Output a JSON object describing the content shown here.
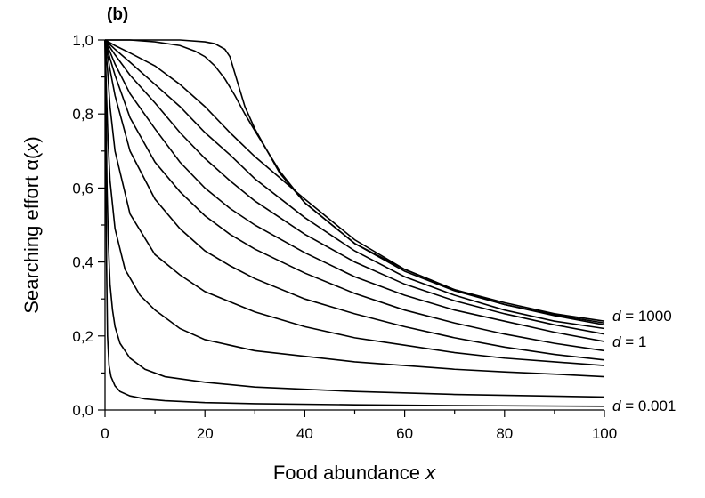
{
  "chart_data": {
    "type": "line",
    "panel_label": "(b)",
    "xlabel": "Food abundance",
    "xlabel_var": "x",
    "ylabel": "Searching effort α(",
    "ylabel_var": "x",
    "ylabel_close": ")",
    "xlim": [
      0,
      100
    ],
    "ylim": [
      0.0,
      1.0
    ],
    "x_ticks": [
      0,
      20,
      40,
      60,
      80,
      100
    ],
    "x_tick_labels": [
      "0",
      "20",
      "40",
      "60",
      "80",
      "100"
    ],
    "y_ticks": [
      0.0,
      0.2,
      0.4,
      0.6,
      0.8,
      1.0
    ],
    "y_tick_labels": [
      "0,0",
      "0,2",
      "0,4",
      "0,6",
      "0,8",
      "1,0"
    ],
    "annotations": [
      {
        "var": "d",
        "text": " = 1000",
        "y": 0.255
      },
      {
        "var": "d",
        "text": " = 1",
        "y": 0.185
      },
      {
        "var": "d",
        "text": " = 0.001",
        "y": 0.012
      }
    ],
    "series": [
      {
        "x": [
          0,
          5,
          10,
          15,
          20,
          22,
          24,
          25,
          26,
          28,
          30,
          35,
          40,
          50,
          60,
          70,
          80,
          90,
          100
        ],
        "y": [
          1.0,
          1.0,
          1.0,
          1.0,
          0.995,
          0.99,
          0.975,
          0.955,
          0.91,
          0.82,
          0.76,
          0.64,
          0.56,
          0.45,
          0.38,
          0.325,
          0.29,
          0.26,
          0.24
        ]
      },
      {
        "x": [
          0,
          5,
          10,
          15,
          18,
          20,
          22,
          24,
          26,
          28,
          30,
          35,
          40,
          50,
          60,
          70,
          80,
          90,
          100
        ],
        "y": [
          1.0,
          1.0,
          0.995,
          0.985,
          0.97,
          0.955,
          0.93,
          0.895,
          0.85,
          0.8,
          0.755,
          0.645,
          0.56,
          0.45,
          0.375,
          0.322,
          0.285,
          0.257,
          0.235
        ]
      },
      {
        "x": [
          0,
          2,
          5,
          10,
          15,
          20,
          25,
          30,
          40,
          50,
          60,
          70,
          80,
          90,
          100
        ],
        "y": [
          1.0,
          0.985,
          0.965,
          0.93,
          0.88,
          0.82,
          0.75,
          0.685,
          0.57,
          0.46,
          0.38,
          0.325,
          0.285,
          0.255,
          0.23
        ]
      },
      {
        "x": [
          0,
          2,
          5,
          10,
          15,
          20,
          25,
          30,
          40,
          50,
          60,
          70,
          80,
          90,
          100
        ],
        "y": [
          1.0,
          0.975,
          0.94,
          0.88,
          0.82,
          0.75,
          0.69,
          0.625,
          0.52,
          0.43,
          0.36,
          0.31,
          0.27,
          0.24,
          0.22
        ]
      },
      {
        "x": [
          0,
          2,
          5,
          10,
          15,
          20,
          25,
          30,
          40,
          50,
          60,
          70,
          80,
          90,
          100
        ],
        "y": [
          1.0,
          0.96,
          0.905,
          0.83,
          0.75,
          0.68,
          0.62,
          0.565,
          0.475,
          0.4,
          0.34,
          0.295,
          0.26,
          0.23,
          0.205
        ]
      },
      {
        "x": [
          0,
          2,
          5,
          10,
          15,
          20,
          25,
          30,
          40,
          50,
          60,
          70,
          80,
          90,
          100
        ],
        "y": [
          1.0,
          0.935,
          0.855,
          0.76,
          0.67,
          0.6,
          0.545,
          0.5,
          0.425,
          0.36,
          0.31,
          0.27,
          0.24,
          0.21,
          0.185
        ]
      },
      {
        "x": [
          0,
          1,
          2,
          5,
          10,
          15,
          20,
          25,
          30,
          40,
          50,
          60,
          70,
          80,
          90,
          100
        ],
        "y": [
          1.0,
          0.95,
          0.905,
          0.79,
          0.67,
          0.59,
          0.525,
          0.475,
          0.435,
          0.37,
          0.315,
          0.27,
          0.235,
          0.205,
          0.18,
          0.16
        ]
      },
      {
        "x": [
          0,
          1,
          2,
          5,
          10,
          15,
          20,
          25,
          30,
          40,
          50,
          60,
          70,
          80,
          90,
          100
        ],
        "y": [
          1.0,
          0.92,
          0.85,
          0.7,
          0.57,
          0.49,
          0.43,
          0.39,
          0.355,
          0.3,
          0.26,
          0.225,
          0.195,
          0.17,
          0.15,
          0.135
        ]
      },
      {
        "x": [
          0,
          0.5,
          1,
          2,
          5,
          10,
          15,
          20,
          30,
          40,
          50,
          60,
          70,
          80,
          90,
          100
        ],
        "y": [
          1.0,
          0.92,
          0.82,
          0.7,
          0.53,
          0.42,
          0.365,
          0.32,
          0.265,
          0.225,
          0.195,
          0.175,
          0.155,
          0.14,
          0.13,
          0.12
        ]
      },
      {
        "x": [
          0,
          0.3,
          0.6,
          1,
          2,
          4,
          7,
          10,
          15,
          20,
          30,
          40,
          50,
          60,
          70,
          80,
          90,
          100
        ],
        "y": [
          1.0,
          0.85,
          0.73,
          0.62,
          0.49,
          0.38,
          0.31,
          0.27,
          0.22,
          0.19,
          0.16,
          0.145,
          0.13,
          0.12,
          0.11,
          0.103,
          0.097,
          0.09
        ]
      },
      {
        "x": [
          0,
          0.2,
          0.4,
          0.7,
          1,
          1.5,
          2,
          3,
          5,
          8,
          12,
          20,
          30,
          50,
          70,
          100
        ],
        "y": [
          1.0,
          0.8,
          0.6,
          0.44,
          0.34,
          0.27,
          0.225,
          0.18,
          0.14,
          0.11,
          0.09,
          0.075,
          0.062,
          0.05,
          0.042,
          0.035
        ]
      },
      {
        "x": [
          0,
          0.1,
          0.2,
          0.3,
          0.5,
          0.8,
          1.2,
          2,
          3,
          5,
          8,
          12,
          20,
          30,
          50,
          70,
          100
        ],
        "y": [
          1.0,
          0.85,
          0.6,
          0.4,
          0.2,
          0.12,
          0.09,
          0.065,
          0.05,
          0.038,
          0.03,
          0.025,
          0.02,
          0.017,
          0.014,
          0.012,
          0.01
        ]
      }
    ]
  }
}
